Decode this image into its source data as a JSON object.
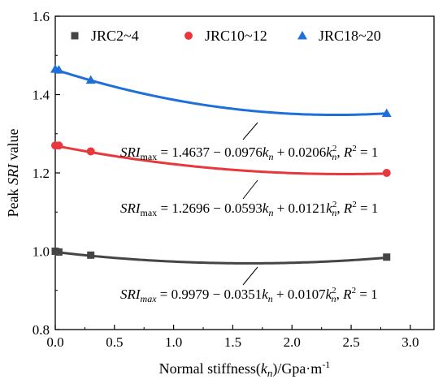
{
  "chart_data": {
    "type": "line",
    "title": "",
    "xlabel": {
      "pre": "Normal stiffness(",
      "k": "k",
      "sub": "n",
      "post": ")/Gpa·m",
      "sup": "-1"
    },
    "ylabel": {
      "pre": "Peak ",
      "italic": "SRI",
      "post": " value"
    },
    "xlim": [
      0,
      3.2
    ],
    "ylim": [
      0.8,
      1.6
    ],
    "xticks": [
      "0.0",
      "0.5",
      "1.0",
      "1.5",
      "2.0",
      "2.5",
      "3.0"
    ],
    "yticks": [
      "0.8",
      "1.0",
      "1.2",
      "1.4",
      "1.6"
    ],
    "grid": false,
    "legend_position": "top",
    "series": [
      {
        "name": "JRC2~4",
        "color": "#454545",
        "marker": "square",
        "points": [
          [
            0,
            1.0
          ],
          [
            0.03,
            0.998
          ],
          [
            0.3,
            0.99
          ],
          [
            2.8,
            0.985
          ]
        ],
        "fit": {
          "a": 0.9979,
          "b": -0.0351,
          "c": 0.0107
        },
        "equation": {
          "lhs": "SRI",
          "sub": "max",
          "c0": "0.9979",
          "c1": "0.0351",
          "c2": "0.0107",
          "r2": "1"
        }
      },
      {
        "name": "JRC10~12",
        "color": "#e8383d",
        "marker": "circle",
        "points": [
          [
            0,
            1.27
          ],
          [
            0.03,
            1.27
          ],
          [
            0.3,
            1.255
          ],
          [
            2.8,
            1.2
          ]
        ],
        "fit": {
          "a": 1.2696,
          "b": -0.0593,
          "c": 0.0121
        },
        "equation": {
          "lhs": "SRI",
          "sub": "max",
          "c0": "1.2696",
          "c1": "0.0593",
          "c2": "0.0121",
          "r2": "1"
        }
      },
      {
        "name": "JRC18~20",
        "color": "#1f6fd8",
        "marker": "triangle",
        "points": [
          [
            0,
            1.465
          ],
          [
            0.03,
            1.463
          ],
          [
            0.3,
            1.437
          ],
          [
            2.8,
            1.352
          ]
        ],
        "fit": {
          "a": 1.4637,
          "b": -0.0976,
          "c": 0.0206
        },
        "equation": {
          "lhs": "SRI",
          "sub": "max",
          "c0": "1.4637",
          "c1": "0.0976",
          "c2": "0.0206",
          "r2": "1"
        }
      }
    ]
  }
}
